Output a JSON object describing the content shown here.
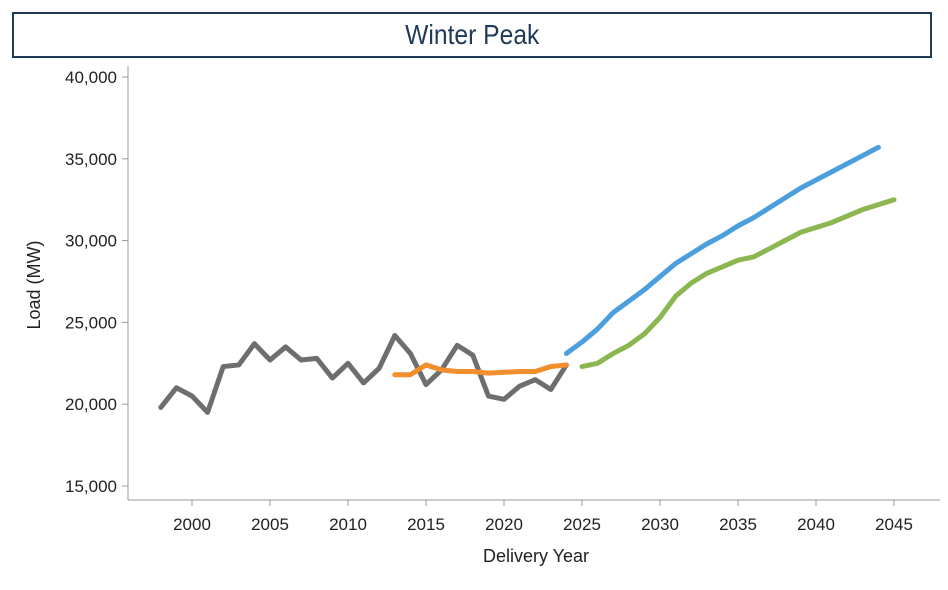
{
  "chart_data": {
    "type": "line",
    "title": "Winter Peak",
    "xlabel": "Delivery Year",
    "ylabel": "Load (MW)",
    "xlim": [
      1997,
      2048
    ],
    "ylim": [
      15000,
      40000
    ],
    "xticks": [
      2000,
      2005,
      2010,
      2015,
      2020,
      2025,
      2030,
      2035,
      2040,
      2045
    ],
    "yticks": [
      "15,000",
      "20,000",
      "25,000",
      "30,000",
      "35,000",
      "40,000"
    ],
    "grid": false,
    "legend": "none",
    "series": [
      {
        "color": "#6d6e70",
        "x": [
          1998,
          1999,
          2000,
          2001,
          2002,
          2003,
          2004,
          2005,
          2006,
          2007,
          2008,
          2009,
          2010,
          2011,
          2012,
          2013,
          2014,
          2015,
          2016,
          2017,
          2018,
          2019,
          2020,
          2021,
          2022,
          2023,
          2024
        ],
        "y": [
          19800,
          21000,
          20500,
          19500,
          22300,
          22400,
          23700,
          22700,
          23500,
          22700,
          22800,
          21600,
          22500,
          21300,
          22200,
          24200,
          23100,
          21200,
          22100,
          23600,
          23000,
          20500,
          20300,
          21100,
          21500,
          20900,
          22400
        ]
      },
      {
        "color": "#f28e2b",
        "x": [
          2013,
          2014,
          2015,
          2016,
          2017,
          2018,
          2019,
          2020,
          2021,
          2022,
          2023,
          2024
        ],
        "y": [
          21800,
          21800,
          22400,
          22100,
          22000,
          22000,
          21900,
          21950,
          22000,
          22000,
          22300,
          22400
        ]
      },
      {
        "color": "#4a9fdc",
        "x": [
          2024,
          2025,
          2026,
          2027,
          2028,
          2029,
          2030,
          2031,
          2032,
          2033,
          2034,
          2035,
          2036,
          2037,
          2038,
          2039,
          2040,
          2041,
          2042,
          2043,
          2044
        ],
        "y": [
          23100,
          23800,
          24600,
          25600,
          26300,
          27000,
          27800,
          28600,
          29200,
          29800,
          30300,
          30900,
          31400,
          32000,
          32600,
          33200,
          33700,
          34200,
          34700,
          35200,
          35700
        ]
      },
      {
        "color": "#8cb650",
        "x": [
          2025,
          2026,
          2027,
          2028,
          2029,
          2030,
          2031,
          2032,
          2033,
          2034,
          2035,
          2036,
          2037,
          2038,
          2039,
          2040,
          2041,
          2042,
          2043,
          2044,
          2045
        ],
        "y": [
          22300,
          22500,
          23100,
          23600,
          24300,
          25300,
          26600,
          27400,
          28000,
          28400,
          28800,
          29000,
          29500,
          30000,
          30500,
          30800,
          31100,
          31500,
          31900,
          32200,
          32500
        ]
      }
    ]
  }
}
